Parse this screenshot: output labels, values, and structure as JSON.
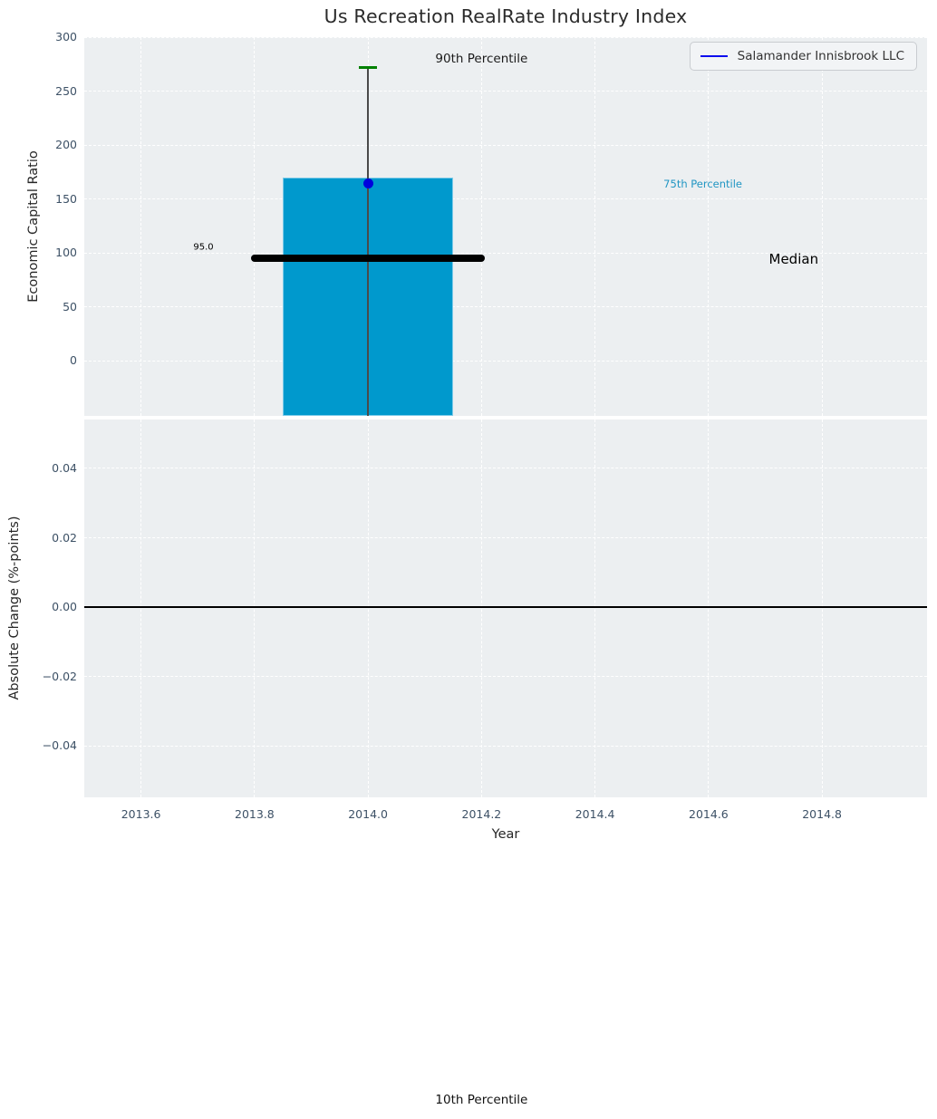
{
  "chart_data": [
    {
      "type": "bar",
      "subtype": "percentile-distribution-with-company-marker",
      "title": "Us Recreation RealRate Industry Index",
      "ylabel": "Economic Capital Ratio",
      "xlim": [
        2013.5,
        2014.985
      ],
      "ylim": [
        -51.3,
        300
      ],
      "grid": true,
      "yticks": [
        {
          "v": 300,
          "label": "300"
        },
        {
          "v": 250,
          "label": "250"
        },
        {
          "v": 200,
          "label": "200"
        },
        {
          "v": 150,
          "label": "150"
        },
        {
          "v": 100,
          "label": "100"
        },
        {
          "v": 50,
          "label": "50"
        },
        {
          "v": 0,
          "label": "0"
        }
      ],
      "xticks": [
        {
          "v": 2013.6,
          "label": "2013.6"
        },
        {
          "v": 2013.8,
          "label": "2013.8"
        },
        {
          "v": 2014.0,
          "label": "2014.0"
        },
        {
          "v": 2014.2,
          "label": "2014.2"
        },
        {
          "v": 2014.4,
          "label": "2014.4"
        },
        {
          "v": 2014.6,
          "label": "2014.6"
        },
        {
          "v": 2014.8,
          "label": "2014.8"
        }
      ],
      "series": {
        "x": 2014.0,
        "p90": 272,
        "p75": 170,
        "median": 95.0,
        "company_value": 164
      },
      "bar": {
        "x_span": [
          2013.85,
          2014.15
        ],
        "top_value": 170,
        "color": "#0099cd",
        "edge_color": "#7ecbe8",
        "clipped_bottom": true
      },
      "median_line": {
        "value": 95.0,
        "x_span": [
          2013.8,
          2014.2
        ],
        "color": "#000000",
        "value_label": "95.0"
      },
      "whisker": {
        "x": 2014.0,
        "top_value": 272,
        "line_color": "#4a4a4a",
        "cap_color": "#008000",
        "cap_halfwidth": 0.016,
        "clipped_bottom": true
      },
      "point": {
        "x": 2014.0,
        "y": 164,
        "color": "#0000dd",
        "name": "Salamander Innisbrook LLC"
      },
      "legend": {
        "position": "upper right",
        "entries": [
          {
            "label": "Salamander Innisbrook LLC",
            "line_color": "#0d0dee"
          }
        ]
      },
      "annotations": [
        {
          "text": "90th Percentile",
          "x": 2014.2,
          "y": 280,
          "color": "#1a1a1a",
          "size": 13.5
        },
        {
          "text": "75th Percentile",
          "x": 2014.59,
          "y": 164,
          "color": "#2196c3",
          "size": 11.5
        },
        {
          "text": "Median",
          "x": 2014.75,
          "y": 94,
          "color": "#000000",
          "size": 15
        },
        {
          "text": "95.0",
          "x": 2013.71,
          "y": 105,
          "color": "#000000",
          "size": 10
        }
      ],
      "footer_annotation": {
        "text": "10th Percentile",
        "x": 2014.2
      }
    },
    {
      "type": "line",
      "ylabel": "Absolute Change (%-points)",
      "xlabel": "Year",
      "xlim": [
        2013.5,
        2014.985
      ],
      "ylim": [
        -0.0549,
        0.0541
      ],
      "grid": true,
      "yticks": [
        {
          "v": 0.04,
          "label": "0.04"
        },
        {
          "v": 0.02,
          "label": "0.02"
        },
        {
          "v": 0.0,
          "label": "0.00"
        },
        {
          "v": -0.02,
          "label": "−0.02"
        },
        {
          "v": -0.04,
          "label": "−0.04"
        }
      ],
      "xticks": [
        {
          "v": 2013.6,
          "label": "2013.6"
        },
        {
          "v": 2013.8,
          "label": "2013.8"
        },
        {
          "v": 2014.0,
          "label": "2014.0"
        },
        {
          "v": 2014.2,
          "label": "2014.2"
        },
        {
          "v": 2014.4,
          "label": "2014.4"
        },
        {
          "v": 2014.6,
          "label": "2014.6"
        },
        {
          "v": 2014.8,
          "label": "2014.8"
        }
      ],
      "zero_line": {
        "y": 0.0,
        "color": "#000000"
      },
      "series": []
    }
  ],
  "colors": {
    "panel_background": "#eceff1",
    "gridline": "#ffffff",
    "tick_label": "#3d5166",
    "bar_fill": "#0099cd",
    "median_line": "#000000",
    "p90_cap": "#008000",
    "company_point": "#0000dd",
    "legend_line": "#0d0dee"
  }
}
